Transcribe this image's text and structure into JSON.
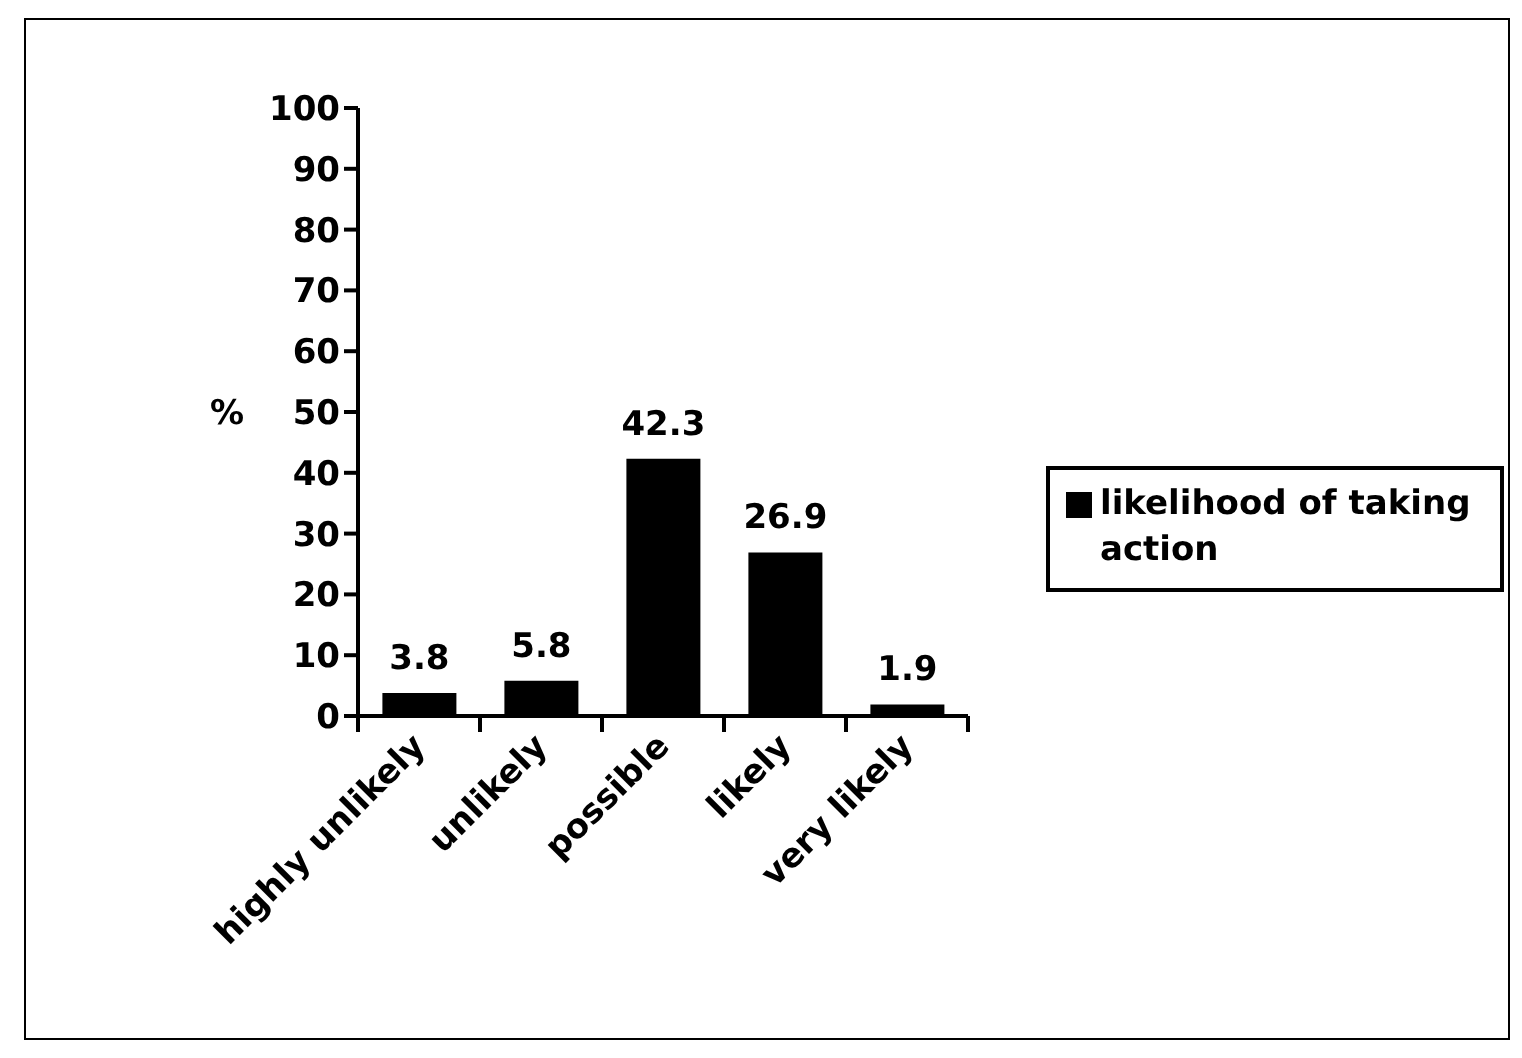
{
  "chart_data": {
    "type": "bar",
    "ylabel": "%",
    "categories": [
      "highly unlikely",
      "unlikely",
      "possible",
      "likely",
      "very likely"
    ],
    "series": [
      {
        "name": "likelihood of taking action",
        "color": "#000000",
        "values": [
          3.8,
          5.8,
          42.3,
          26.9,
          1.9
        ]
      }
    ],
    "ylim": [
      0,
      100
    ],
    "yticks": [
      0,
      10,
      20,
      30,
      40,
      50,
      60,
      70,
      80,
      90,
      100
    ],
    "legend": "right",
    "data_labels": true
  }
}
